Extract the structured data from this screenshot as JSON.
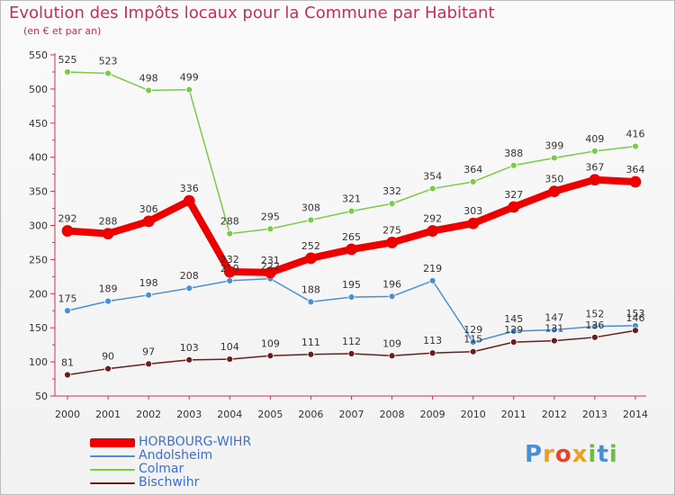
{
  "header": {
    "title": "Evolution des Impôts locaux pour la Commune par Habitant",
    "subtitle": "(en € et par an)"
  },
  "logo": {
    "text": "Proxiti",
    "letters": [
      "P",
      "r",
      "o",
      "x",
      "i",
      "t",
      "i"
    ]
  },
  "chart_data": {
    "type": "line",
    "x": [
      "2000",
      "2001",
      "2002",
      "2003",
      "2004",
      "2005",
      "2006",
      "2007",
      "2008",
      "2009",
      "2010",
      "2011",
      "2012",
      "2013",
      "2014"
    ],
    "ylim": [
      50,
      550
    ],
    "yticks": [
      50,
      100,
      150,
      200,
      250,
      300,
      350,
      400,
      450,
      500,
      550
    ],
    "grid": false,
    "legend_position": "bottom-left",
    "series": [
      {
        "name": "HORBOURG-WIHR",
        "color": "#ee0000",
        "emphasis": true,
        "values": [
          292,
          288,
          306,
          336,
          232,
          231,
          252,
          265,
          275,
          292,
          303,
          327,
          350,
          367,
          364
        ]
      },
      {
        "name": "Andolsheim",
        "color": "#4a8fd6",
        "emphasis": false,
        "values": [
          175,
          189,
          198,
          208,
          219,
          222,
          188,
          195,
          196,
          219,
          129,
          145,
          147,
          152,
          153
        ]
      },
      {
        "name": "Colmar",
        "color": "#7acc44",
        "emphasis": false,
        "values": [
          525,
          523,
          498,
          499,
          288,
          295,
          308,
          321,
          332,
          354,
          364,
          388,
          399,
          409,
          416
        ]
      },
      {
        "name": "Bischwihr",
        "color": "#6b1d1d",
        "emphasis": false,
        "values": [
          81,
          90,
          97,
          103,
          104,
          109,
          111,
          112,
          109,
          113,
          115,
          129,
          131,
          136,
          146
        ]
      }
    ],
    "labels": [
      [
        "292",
        "288",
        "306",
        "336",
        "232",
        "231",
        "252",
        "265",
        "275",
        "292",
        "303",
        "327",
        "350",
        "367",
        "364"
      ],
      [
        "175",
        "189",
        "198",
        "208",
        "219",
        "222",
        "188",
        "195",
        "196",
        "219",
        "129",
        "145",
        "147",
        "152",
        "153"
      ],
      [
        "525",
        "523",
        "498",
        "499",
        "288",
        "295",
        "308",
        "321",
        "332",
        "354",
        "364",
        "388",
        "399",
        "409",
        "416"
      ],
      [
        "81",
        "90",
        "97",
        "103",
        "104",
        "109",
        "111",
        "112",
        "109",
        "113",
        "115",
        "129",
        "131",
        "136",
        "146"
      ]
    ]
  }
}
